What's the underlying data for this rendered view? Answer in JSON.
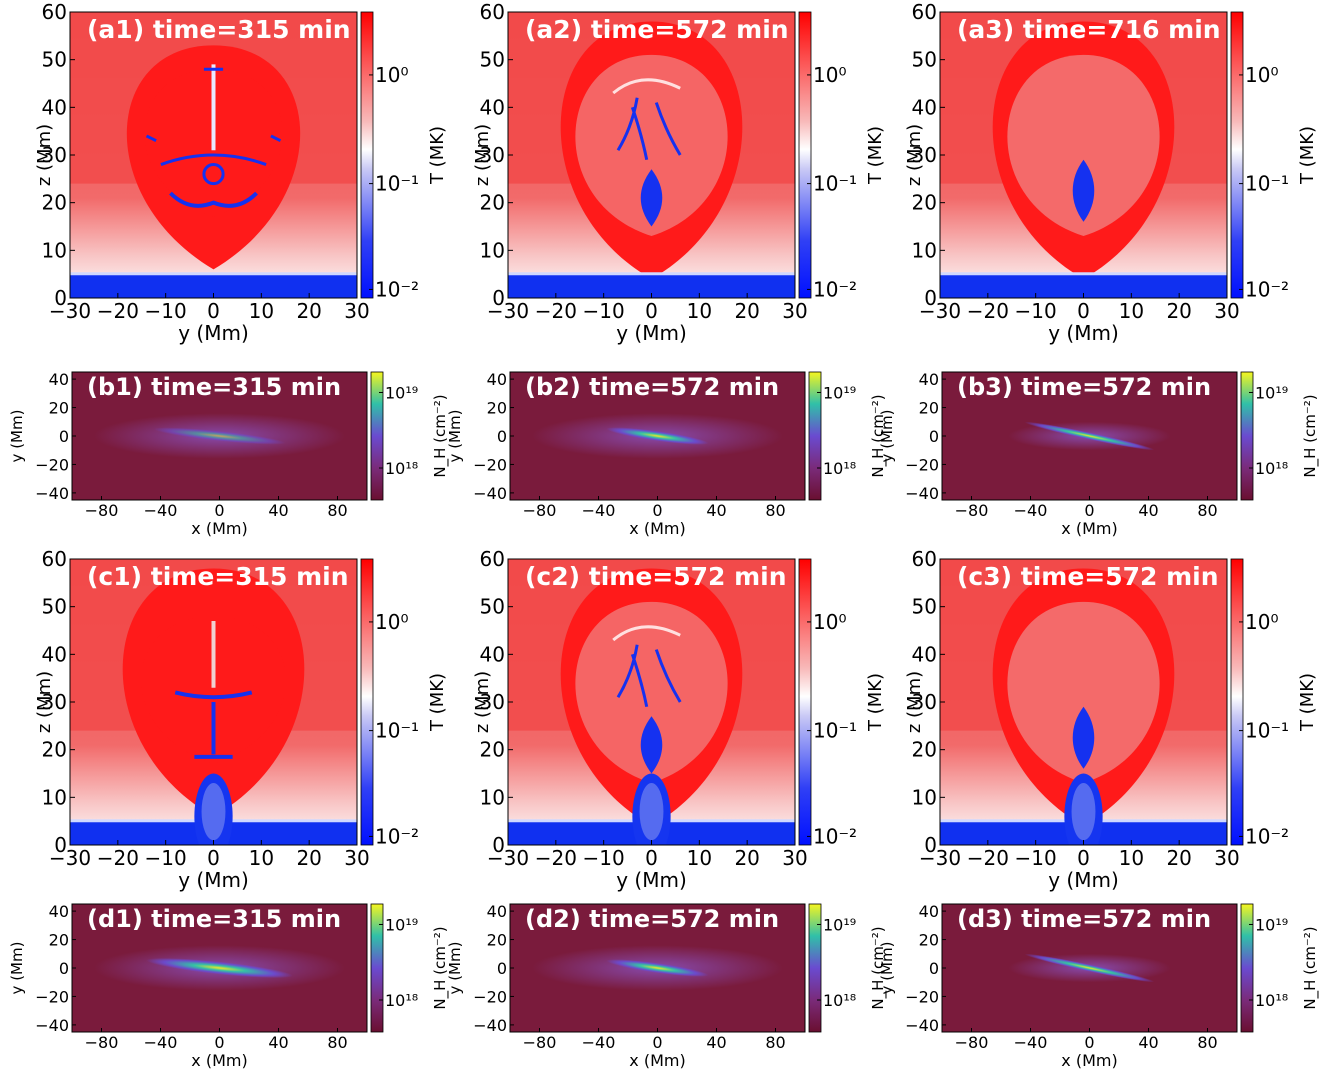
{
  "figure": {
    "colors": {
      "hot": "#f0192a",
      "mid": "#f6aeb0",
      "cold": "#1531f0",
      "nh_bg": "#7a1b3c",
      "nh_mid": "#6a4bc8",
      "nh_high": "#2fc6a2",
      "nh_top": "#f2f21a"
    }
  },
  "chart_data": [
    {
      "id": "a1",
      "type": "heatmap",
      "title": "(a1) time=315 min",
      "xlabel": "y (Mm)",
      "ylabel": "z (Mm)",
      "xlim": [
        -30,
        30
      ],
      "ylim": [
        0,
        60
      ],
      "xticks": [
        "−30",
        "−20",
        "−10",
        "0",
        "10",
        "20",
        "30"
      ],
      "yticks": [
        "0",
        "10",
        "20",
        "30",
        "40",
        "50",
        "60"
      ],
      "colorbar": {
        "label": "T (MK)",
        "ticks": [
          "10⁰",
          "10⁻¹",
          "10⁻²"
        ],
        "scale": "log",
        "range": [
          0.01,
          3
        ]
      }
    },
    {
      "id": "a2",
      "type": "heatmap",
      "title": "(a2) time=572 min",
      "xlabel": "y (Mm)",
      "ylabel": "z (Mm)",
      "xlim": [
        -30,
        30
      ],
      "ylim": [
        0,
        60
      ],
      "xticks": [
        "−30",
        "−20",
        "−10",
        "0",
        "10",
        "20",
        "30"
      ],
      "yticks": [
        "0",
        "10",
        "20",
        "30",
        "40",
        "50",
        "60"
      ],
      "colorbar": {
        "label": "T (MK)",
        "ticks": [
          "10⁰",
          "10⁻¹",
          "10⁻²"
        ],
        "scale": "log",
        "range": [
          0.01,
          3
        ]
      }
    },
    {
      "id": "a3",
      "type": "heatmap",
      "title": "(a3) time=716 min",
      "xlabel": "y (Mm)",
      "ylabel": "z (Mm)",
      "xlim": [
        -30,
        30
      ],
      "ylim": [
        0,
        60
      ],
      "xticks": [
        "−30",
        "−20",
        "−10",
        "0",
        "10",
        "20",
        "30"
      ],
      "yticks": [
        "0",
        "10",
        "20",
        "30",
        "40",
        "50",
        "60"
      ],
      "colorbar": {
        "label": "T (MK)",
        "ticks": [
          "10⁰",
          "10⁻¹",
          "10⁻²"
        ],
        "scale": "log",
        "range": [
          0.01,
          3
        ]
      }
    },
    {
      "id": "b1",
      "type": "heatmap",
      "title": "(b1) time=315 min",
      "xlabel": "x (Mm)",
      "ylabel": "y (Mm)",
      "xlim": [
        -100,
        100
      ],
      "ylim": [
        -45,
        45
      ],
      "xticks": [
        "−80",
        "−40",
        "0",
        "40",
        "80"
      ],
      "yticks": [
        "−40",
        "−20",
        "0",
        "20",
        "40"
      ],
      "colorbar": {
        "label": "N_H (cm⁻²)",
        "ticks": [
          "10¹⁹",
          "10¹⁸"
        ],
        "scale": "log"
      }
    },
    {
      "id": "b2",
      "type": "heatmap",
      "title": "(b2) time=572 min",
      "xlabel": "x (Mm)",
      "ylabel": "y (Mm)",
      "xlim": [
        -100,
        100
      ],
      "ylim": [
        -45,
        45
      ],
      "xticks": [
        "−80",
        "−40",
        "0",
        "40",
        "80"
      ],
      "yticks": [
        "−40",
        "−20",
        "0",
        "20",
        "40"
      ],
      "colorbar": {
        "label": "N_H (cm⁻²)",
        "ticks": [
          "10¹⁹",
          "10¹⁸"
        ],
        "scale": "log"
      }
    },
    {
      "id": "b3",
      "type": "heatmap",
      "title": "(b3) time=572 min",
      "xlabel": "x (Mm)",
      "ylabel": "y (Mm)",
      "xlim": [
        -100,
        100
      ],
      "ylim": [
        -45,
        45
      ],
      "xticks": [
        "−80",
        "−40",
        "0",
        "40",
        "80"
      ],
      "yticks": [
        "−40",
        "−20",
        "0",
        "20",
        "40"
      ],
      "colorbar": {
        "label": "N_H (cm⁻²)",
        "ticks": [
          "10¹⁹",
          "10¹⁸"
        ],
        "scale": "log"
      }
    },
    {
      "id": "c1",
      "type": "heatmap",
      "title": "(c1) time=315 min",
      "xlabel": "y (Mm)",
      "ylabel": "z (Mm)",
      "xlim": [
        -30,
        30
      ],
      "ylim": [
        0,
        60
      ],
      "xticks": [
        "−30",
        "−20",
        "−10",
        "0",
        "10",
        "20",
        "30"
      ],
      "yticks": [
        "0",
        "10",
        "20",
        "30",
        "40",
        "50",
        "60"
      ],
      "colorbar": {
        "label": "T (MK)",
        "ticks": [
          "10⁰",
          "10⁻¹",
          "10⁻²"
        ],
        "scale": "log",
        "range": [
          0.01,
          3
        ]
      }
    },
    {
      "id": "c2",
      "type": "heatmap",
      "title": "(c2) time=572 min",
      "xlabel": "y (Mm)",
      "ylabel": "z (Mm)",
      "xlim": [
        -30,
        30
      ],
      "ylim": [
        0,
        60
      ],
      "xticks": [
        "−30",
        "−20",
        "−10",
        "0",
        "10",
        "20",
        "30"
      ],
      "yticks": [
        "0",
        "10",
        "20",
        "30",
        "40",
        "50",
        "60"
      ],
      "colorbar": {
        "label": "T (MK)",
        "ticks": [
          "10⁰",
          "10⁻¹",
          "10⁻²"
        ],
        "scale": "log",
        "range": [
          0.01,
          3
        ]
      }
    },
    {
      "id": "c3",
      "type": "heatmap",
      "title": "(c3) time=572 min",
      "xlabel": "y (Mm)",
      "ylabel": "z (Mm)",
      "xlim": [
        -30,
        30
      ],
      "ylim": [
        0,
        60
      ],
      "xticks": [
        "−30",
        "−20",
        "−10",
        "0",
        "10",
        "20",
        "30"
      ],
      "yticks": [
        "0",
        "10",
        "20",
        "30",
        "40",
        "50",
        "60"
      ],
      "colorbar": {
        "label": "T (MK)",
        "ticks": [
          "10⁰",
          "10⁻¹",
          "10⁻²"
        ],
        "scale": "log",
        "range": [
          0.01,
          3
        ]
      }
    },
    {
      "id": "d1",
      "type": "heatmap",
      "title": "(d1) time=315 min",
      "xlabel": "x (Mm)",
      "ylabel": "y (Mm)",
      "xlim": [
        -100,
        100
      ],
      "ylim": [
        -45,
        45
      ],
      "xticks": [
        "−80",
        "−40",
        "0",
        "40",
        "80"
      ],
      "yticks": [
        "−40",
        "−20",
        "0",
        "20",
        "40"
      ],
      "colorbar": {
        "label": "N_H (cm⁻²)",
        "ticks": [
          "10¹⁹",
          "10¹⁸"
        ],
        "scale": "log"
      }
    },
    {
      "id": "d2",
      "type": "heatmap",
      "title": "(d2) time=572 min",
      "xlabel": "x (Mm)",
      "ylabel": "y (Mm)",
      "xlim": [
        -100,
        100
      ],
      "ylim": [
        -45,
        45
      ],
      "xticks": [
        "−80",
        "−40",
        "0",
        "40",
        "80"
      ],
      "yticks": [
        "−40",
        "−20",
        "0",
        "20",
        "40"
      ],
      "colorbar": {
        "label": "N_H (cm⁻²)",
        "ticks": [
          "10¹⁹",
          "10¹⁸"
        ],
        "scale": "log"
      }
    },
    {
      "id": "d3",
      "type": "heatmap",
      "title": "(d3) time=572 min",
      "xlabel": "x (Mm)",
      "ylabel": "y (Mm)",
      "xlim": [
        -100,
        100
      ],
      "ylim": [
        -45,
        45
      ],
      "xticks": [
        "−80",
        "−40",
        "0",
        "40",
        "80"
      ],
      "yticks": [
        "−40",
        "−20",
        "0",
        "20",
        "40"
      ],
      "colorbar": {
        "label": "N_H (cm⁻²)",
        "ticks": [
          "10¹⁹",
          "10¹⁸"
        ],
        "scale": "log"
      }
    }
  ]
}
